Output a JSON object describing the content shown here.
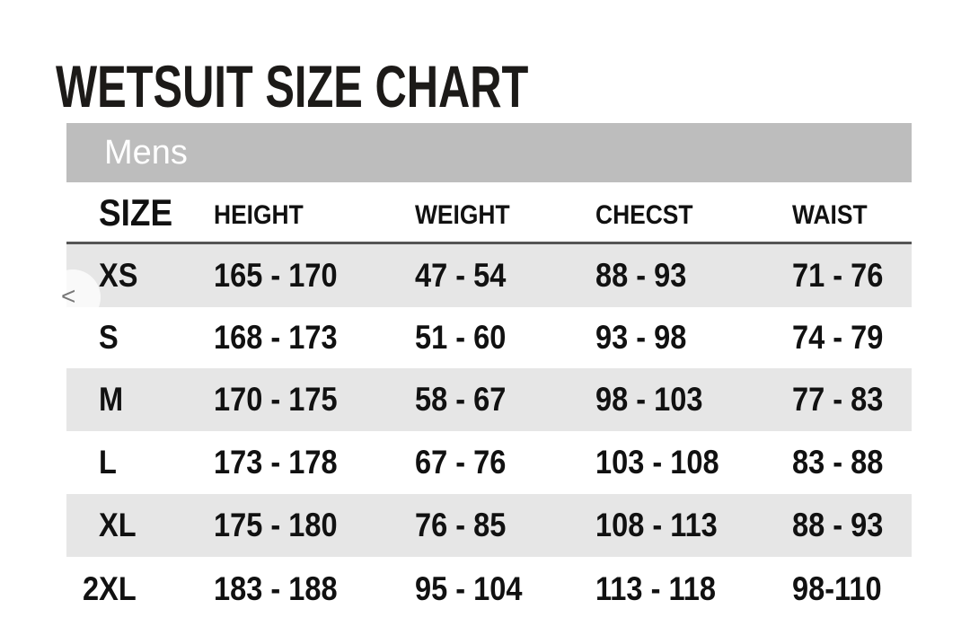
{
  "title": "WETSUIT SIZE CHART",
  "group": "Mens",
  "columns": [
    "SIZE",
    "HEIGHT",
    "WEIGHT",
    "CHECST",
    "WAIST"
  ],
  "rows": [
    [
      "XS",
      "165 - 170",
      "47 - 54",
      "88 - 93",
      "71 - 76"
    ],
    [
      "S",
      "168 - 173",
      "51 - 60",
      "93 - 98",
      "74 - 79"
    ],
    [
      "M",
      "170 - 175",
      "58 - 67",
      "98 - 103",
      "77 - 83"
    ],
    [
      "L",
      "173 - 178",
      "67 - 76",
      "103 - 108",
      "83 - 88"
    ],
    [
      "XL",
      "175 - 180",
      "76 - 85",
      "108 - 113",
      "88 - 93"
    ],
    [
      "2XL",
      "183 - 188",
      "95 - 104",
      "113 - 118",
      "98-110"
    ]
  ],
  "carousel": {
    "prev_icon": "chevron-left-icon",
    "prev_glyph": "<"
  },
  "colors": {
    "group_bar": "#bdbdbd",
    "shaded_row": "#e6e6e6",
    "text": "#111111"
  }
}
